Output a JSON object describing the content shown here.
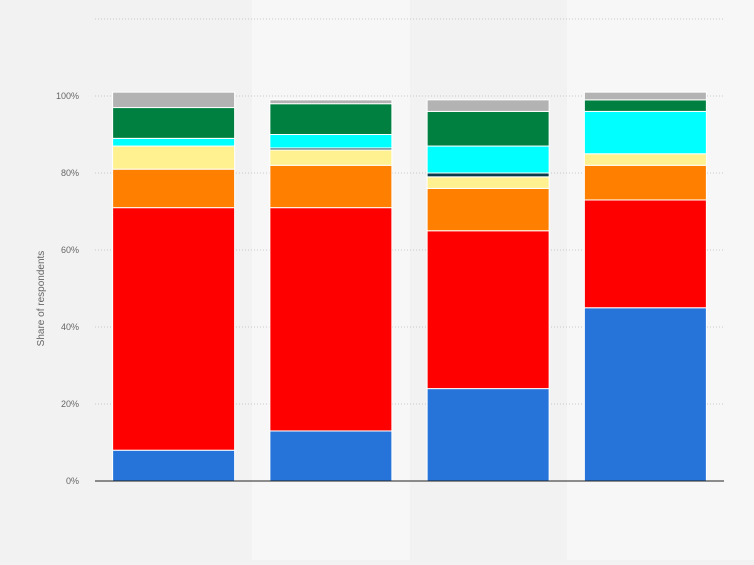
{
  "chart_data": {
    "type": "bar",
    "stacked": true,
    "ylabel": "Share of respondents",
    "ylim": [
      0,
      120
    ],
    "yticks": [
      0,
      20,
      40,
      60,
      80,
      100
    ],
    "y_tick_labels": [
      "0%",
      "20%",
      "40%",
      "60%",
      "80%",
      "100%"
    ],
    "grid": true,
    "categories": [
      "",
      "",
      "",
      ""
    ],
    "series": [
      {
        "color": "#2674d9",
        "values": [
          8,
          13,
          24,
          45
        ]
      },
      {
        "color": "#ff0000",
        "values": [
          63,
          58,
          41,
          28
        ]
      },
      {
        "color": "#ff7f00",
        "values": [
          10,
          11,
          11,
          9
        ]
      },
      {
        "color": "#fff18f",
        "values": [
          6,
          4,
          3,
          3
        ]
      },
      {
        "color": "#0b3a4a",
        "values": [
          0,
          0.5,
          1,
          0
        ]
      },
      {
        "color": "#00ffff",
        "values": [
          2,
          3.5,
          7,
          11
        ]
      },
      {
        "color": "#008040",
        "values": [
          8,
          8,
          9,
          3
        ]
      },
      {
        "color": "#b3b3b3",
        "values": [
          4,
          1,
          3,
          2
        ]
      }
    ]
  }
}
